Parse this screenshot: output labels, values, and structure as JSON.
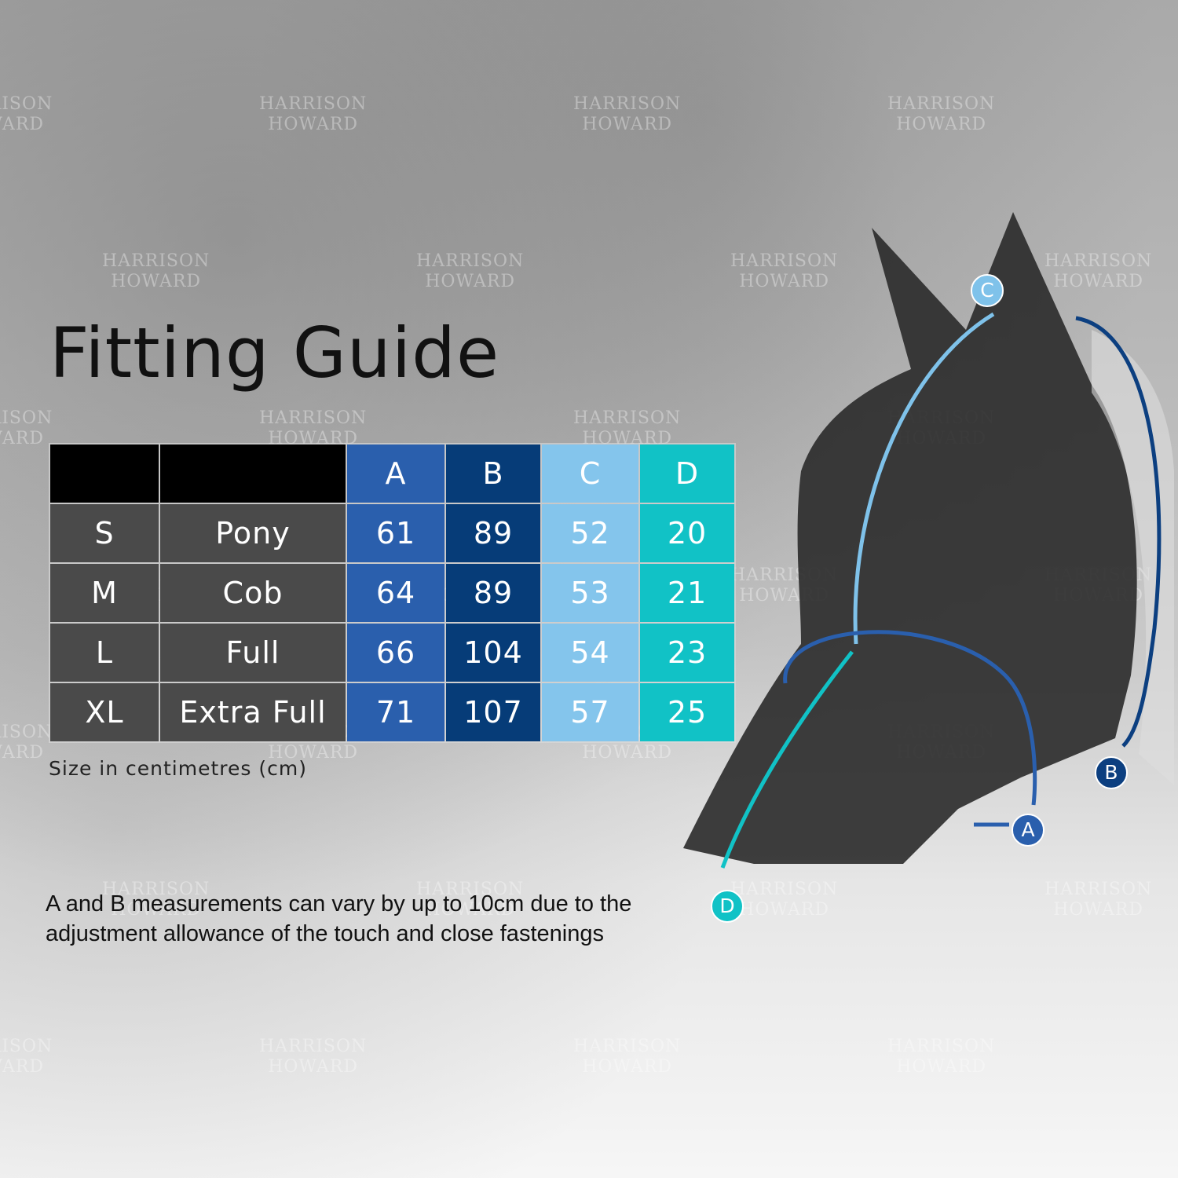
{
  "title": "Fitting Guide",
  "watermark": {
    "line1": "HARRISON",
    "line2": "HOWARD"
  },
  "table": {
    "headers": [
      "",
      "",
      "A",
      "B",
      "C",
      "D"
    ],
    "column_colors": {
      "A": "#2a5fad",
      "B": "#063c78",
      "C": "#84c5ec",
      "D": "#11c2c6"
    },
    "rows": [
      {
        "size": "S",
        "name": "Pony",
        "A": "61",
        "B": "89",
        "C": "52",
        "D": "20"
      },
      {
        "size": "M",
        "name": "Cob",
        "A": "64",
        "B": "89",
        "C": "53",
        "D": "21"
      },
      {
        "size": "L",
        "name": "Full",
        "A": "66",
        "B": "104",
        "C": "54",
        "D": "23"
      },
      {
        "size": "XL",
        "name": "Extra Full",
        "A": "71",
        "B": "107",
        "C": "57",
        "D": "25"
      }
    ]
  },
  "caption": "Size in centimetres (cm)",
  "note": "A and B measurements can vary by up to 10cm due to the adjustment allowance of the touch and close fastenings",
  "diagram_labels": {
    "A": "A",
    "B": "B",
    "C": "C",
    "D": "D"
  }
}
